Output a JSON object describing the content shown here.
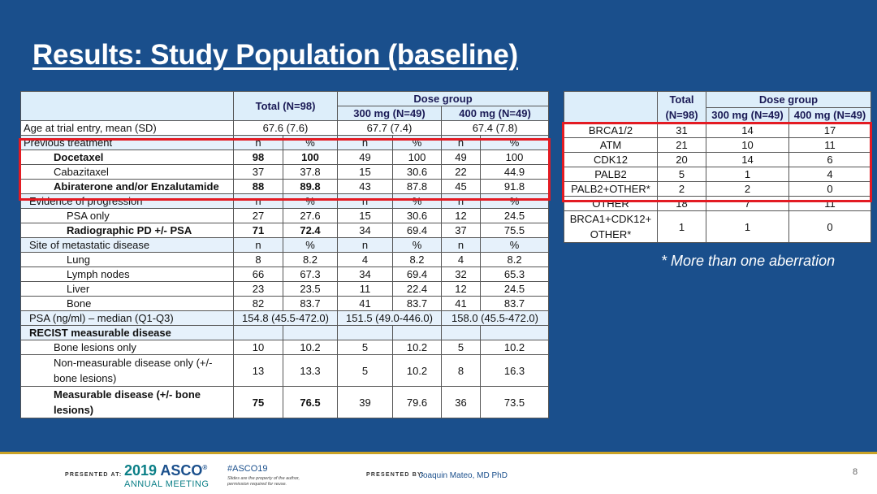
{
  "slide": {
    "title": "Results: Study Population (baseline)",
    "footnote": "* More than one aberration",
    "page_number": "8"
  },
  "main_table": {
    "header": {
      "total": "Total (N=98)",
      "dose_group": "Dose group",
      "dose_300": "300 mg  (N=49)",
      "dose_400": "400 mg (N=49)"
    },
    "rows": [
      {
        "label": "Age at trial entry, mean (SD)",
        "total": "67.6 (7.6)",
        "d300": "67.7 (7.4)",
        "d400": "67.4 (7.8)"
      },
      {
        "label": "Previous treatment",
        "cells": [
          "n",
          "%",
          "n",
          "%",
          "n",
          "%"
        ]
      },
      {
        "label": "Docetaxel",
        "cells": [
          "98",
          "100",
          "49",
          "100",
          "49",
          "100"
        ]
      },
      {
        "label": "Cabazitaxel",
        "cells": [
          "37",
          "37.8",
          "15",
          "30.6",
          "22",
          "44.9"
        ]
      },
      {
        "label": "Abiraterone and/or Enzalutamide",
        "cells": [
          "88",
          "89.8",
          "43",
          "87.8",
          "45",
          "91.8"
        ]
      },
      {
        "label": "Evidence of progression",
        "cells": [
          "n",
          "%",
          "n",
          "%",
          "n",
          "%"
        ]
      },
      {
        "label": "PSA only",
        "cells": [
          "27",
          "27.6",
          "15",
          "30.6",
          "12",
          "24.5"
        ]
      },
      {
        "label": "Radiographic PD +/- PSA",
        "cells": [
          "71",
          "72.4",
          "34",
          "69.4",
          "37",
          "75.5"
        ]
      },
      {
        "label": "Site of metastatic disease",
        "cells": [
          "n",
          "%",
          "n",
          "%",
          "n",
          "%"
        ]
      },
      {
        "label": "Lung",
        "cells": [
          "8",
          "8.2",
          "4",
          "8.2",
          "4",
          "8.2"
        ]
      },
      {
        "label": "Lymph nodes",
        "cells": [
          "66",
          "67.3",
          "34",
          "69.4",
          "32",
          "65.3"
        ]
      },
      {
        "label": "Liver",
        "cells": [
          "23",
          "23.5",
          "11",
          "22.4",
          "12",
          "24.5"
        ]
      },
      {
        "label": "Bone",
        "cells": [
          "82",
          "83.7",
          "41",
          "83.7",
          "41",
          "83.7"
        ]
      },
      {
        "label": "PSA (ng/ml) – median (Q1-Q3)",
        "total": "154.8 (45.5-472.0)",
        "d300": "151.5 (49.0-446.0)",
        "d400": "158.0 (45.5-472.0)"
      },
      {
        "label": "RECIST measurable disease"
      },
      {
        "label": "Bone lesions only",
        "cells": [
          "10",
          "10.2",
          "5",
          "10.2",
          "5",
          "10.2"
        ]
      },
      {
        "label": "Non-measurable disease only (+/- bone lesions)",
        "cells": [
          "13",
          "13.3",
          "5",
          "10.2",
          "8",
          "16.3"
        ]
      },
      {
        "label": "Measurable disease  (+/- bone lesions)",
        "cells": [
          "75",
          "76.5",
          "39",
          "79.6",
          "36",
          "73.5"
        ]
      }
    ]
  },
  "aberration_table": {
    "header": {
      "total": "Total (N=98)",
      "dose_group": "Dose group",
      "dose_300": "300 mg  (N=49)",
      "dose_400": "400 mg (N=49)"
    },
    "rows": [
      {
        "label": "BRCA1/2",
        "cells": [
          "31",
          "14",
          "17"
        ]
      },
      {
        "label": "ATM",
        "cells": [
          "21",
          "10",
          "11"
        ]
      },
      {
        "label": "CDK12",
        "cells": [
          "20",
          "14",
          "6"
        ]
      },
      {
        "label": "PALB2",
        "cells": [
          "5",
          "1",
          "4"
        ]
      },
      {
        "label": "PALB2+OTHER*",
        "cells": [
          "2",
          "2",
          "0"
        ]
      },
      {
        "label": "OTHER",
        "cells": [
          "18",
          "7",
          "11"
        ]
      },
      {
        "label": "BRCA1+CDK12+ OTHER*",
        "cells": [
          "1",
          "1",
          "0"
        ]
      }
    ]
  },
  "footer": {
    "presented_at": "PRESENTED AT:",
    "asco_year": "2019",
    "asco_name": "ASCO",
    "asco_trademark": "®",
    "annual_meeting": "ANNUAL MEETING",
    "hashtag": "#ASCO19",
    "rights_notice": "Slides are the property of the author, permission required for reuse.",
    "presented_by": "PRESENTED BY:",
    "presenter": "Joaquin Mateo, MD PhD"
  },
  "colors": {
    "background": "#1a4f8c",
    "highlight": "#e31b23",
    "header_fill": "#ddeefa",
    "accent_gold": "#c9a227"
  }
}
